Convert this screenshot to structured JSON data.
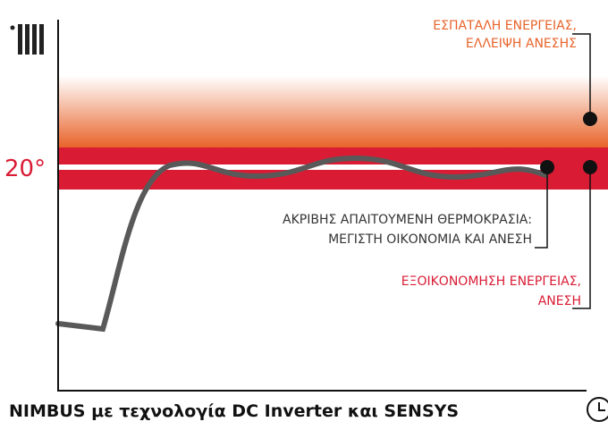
{
  "setpoint_label": "20°",
  "zones": {
    "above": {
      "lines": [
        "ΕΣΠΑΤΑΛΗ ΕΝΕΡΓΕΙΑΣ,",
        "ΕΛΛΕΙΨΗ ΑΝΕΣΗΣ"
      ]
    },
    "exact": {
      "lines": [
        "ΑΚΡΙΒΗΣ ΑΠΑΙΤΟΥΜΕΝΗ ΘΕΡΜΟΚΡΑΣΙΑ:",
        "ΜΕΓΙΣΤΗ ΟΙΚΟΝΟΜΙΑ ΚΑΙ ΑΝΕΣΗ"
      ]
    },
    "band": {
      "lines": [
        "ΕΞΟΙΚΟΝΟΜΗΣΗ ΕΝΕΡΓΕΙΑΣ,",
        "ΑΝΕΣΗ"
      ]
    }
  },
  "footer": "NIMBUS με τεχνολογία DC Inverter και SENSYS"
}
